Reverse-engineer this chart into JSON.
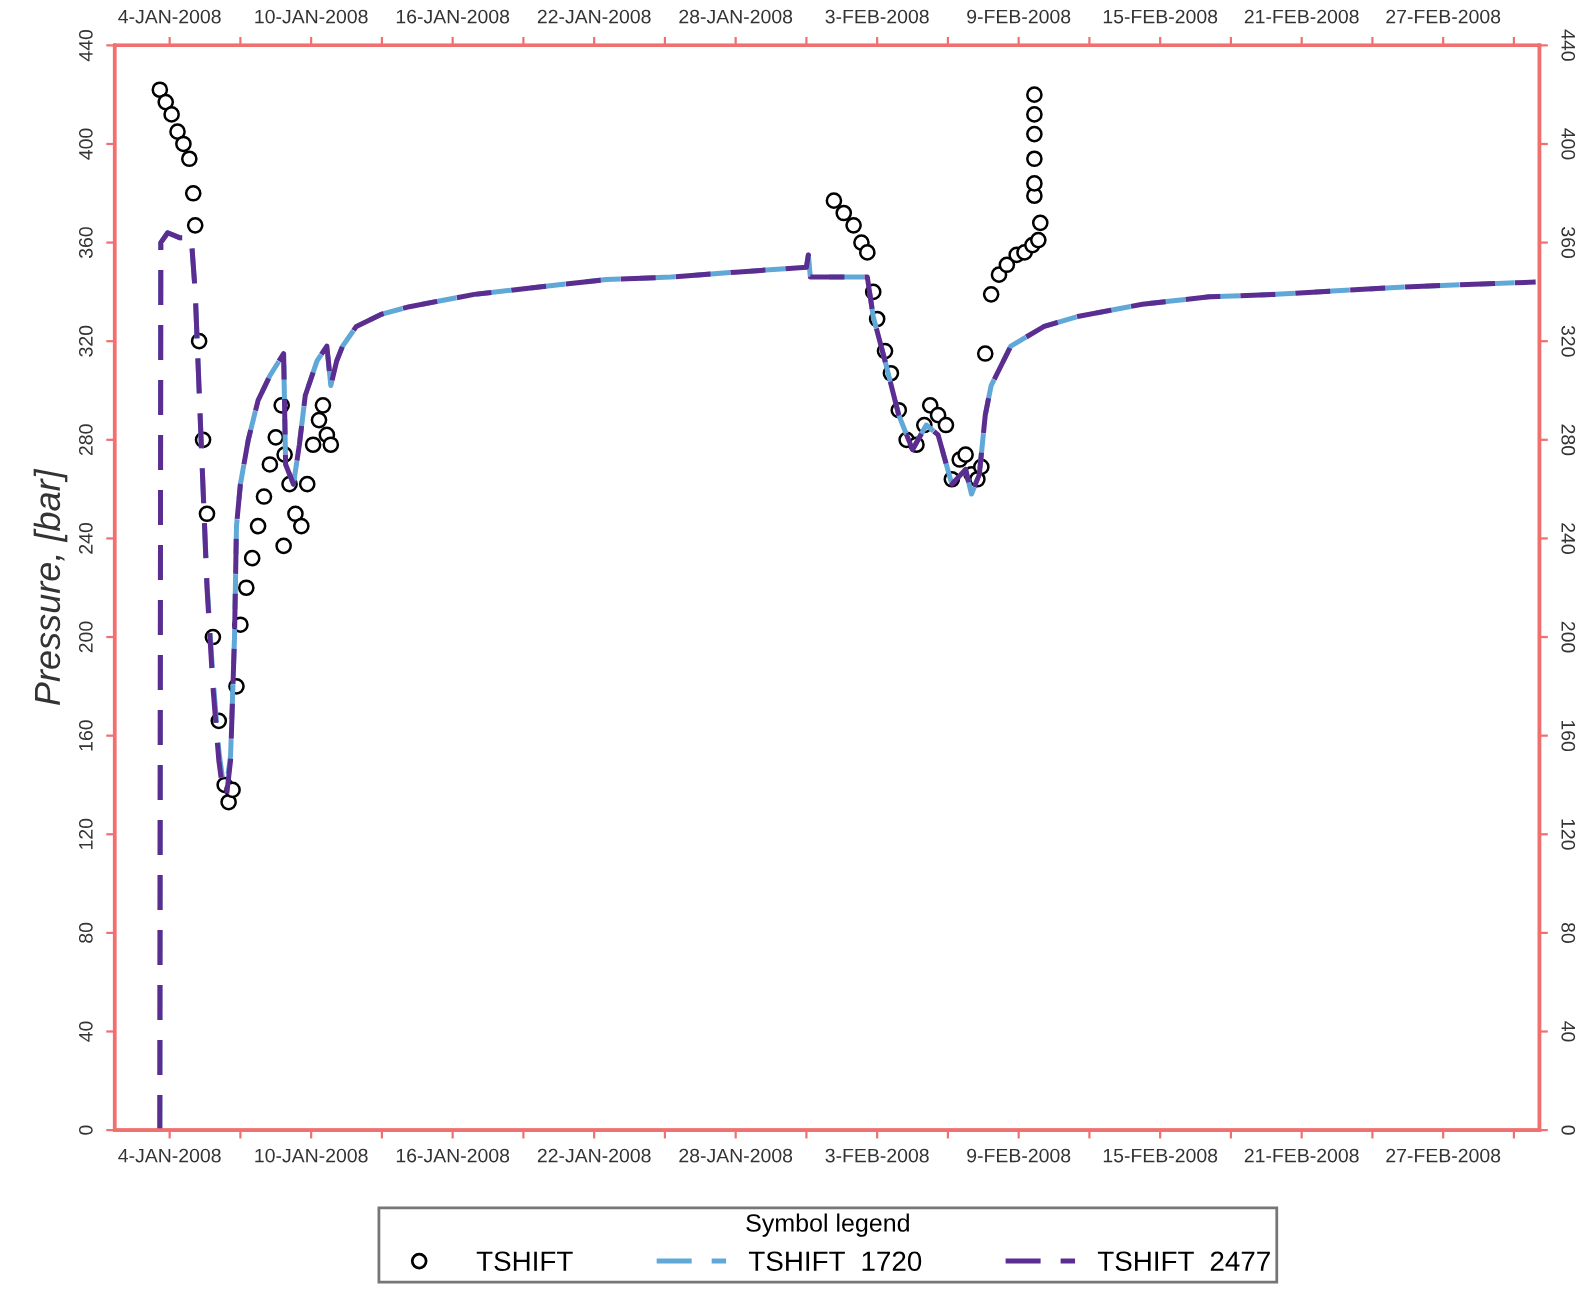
{
  "chart_data": {
    "type": "line",
    "ylabel": "Pressure, [bar]",
    "legend_title": "Symbol legend",
    "legend": "bottom",
    "grid": false,
    "xlim": [
      "2008-01-01T16:00",
      "2008-03-02T02:00"
    ],
    "xticks": [
      {
        "value": "2008-01-04",
        "label": "4-JAN-2008"
      },
      {
        "value": "2008-01-07",
        "label": null
      },
      {
        "value": "2008-01-10",
        "label": "10-JAN-2008"
      },
      {
        "value": "2008-01-13",
        "label": null
      },
      {
        "value": "2008-01-16",
        "label": "16-JAN-2008"
      },
      {
        "value": "2008-01-19",
        "label": null
      },
      {
        "value": "2008-01-22",
        "label": "22-JAN-2008"
      },
      {
        "value": "2008-01-25",
        "label": null
      },
      {
        "value": "2008-01-28",
        "label": "28-JAN-2008"
      },
      {
        "value": "2008-01-31",
        "label": null
      },
      {
        "value": "2008-02-03",
        "label": "3-FEB-2008"
      },
      {
        "value": "2008-02-06",
        "label": null
      },
      {
        "value": "2008-02-09",
        "label": "9-FEB-2008"
      },
      {
        "value": "2008-02-12",
        "label": null
      },
      {
        "value": "2008-02-15",
        "label": "15-FEB-2008"
      },
      {
        "value": "2008-02-18",
        "label": null
      },
      {
        "value": "2008-02-21",
        "label": "21-FEB-2008"
      },
      {
        "value": "2008-02-24",
        "label": null
      },
      {
        "value": "2008-02-27",
        "label": "27-FEB-2008"
      },
      {
        "value": "2008-03-01",
        "label": null
      }
    ],
    "x2lim": [
      "2008-01-01T16:00",
      "2008-03-02T02:00"
    ],
    "x2ticks": [
      {
        "value": "2008-01-04",
        "label": "4-JAN-2008"
      },
      {
        "value": "2008-01-07",
        "label": null
      },
      {
        "value": "2008-01-10",
        "label": "10-JAN-2008"
      },
      {
        "value": "2008-01-13",
        "label": null
      },
      {
        "value": "2008-01-16",
        "label": "16-JAN-2008"
      },
      {
        "value": "2008-01-19",
        "label": null
      },
      {
        "value": "2008-01-22",
        "label": "22-JAN-2008"
      },
      {
        "value": "2008-01-25",
        "label": null
      },
      {
        "value": "2008-01-28",
        "label": "28-JAN-2008"
      },
      {
        "value": "2008-01-31",
        "label": null
      },
      {
        "value": "2008-02-03",
        "label": "3-FEB-2008"
      },
      {
        "value": "2008-02-06",
        "label": null
      },
      {
        "value": "2008-02-09",
        "label": "9-FEB-2008"
      },
      {
        "value": "2008-02-12",
        "label": null
      },
      {
        "value": "2008-02-15",
        "label": "15-FEB-2008"
      },
      {
        "value": "2008-02-18",
        "label": null
      },
      {
        "value": "2008-02-21",
        "label": "21-FEB-2008"
      },
      {
        "value": "2008-02-24",
        "label": null
      },
      {
        "value": "2008-02-27",
        "label": "27-FEB-2008"
      },
      {
        "value": "2008-03-01",
        "label": null
      }
    ],
    "ylim": [
      0,
      440
    ],
    "yticks": [
      0,
      40,
      80,
      120,
      160,
      200,
      240,
      280,
      320,
      360,
      400,
      440
    ],
    "y2lim": [
      0,
      440
    ],
    "y2ticks": [
      0,
      40,
      80,
      120,
      160,
      200,
      240,
      280,
      320,
      360,
      400,
      440
    ],
    "series": [
      {
        "name": "TSHIFT",
        "type": "scatter",
        "marker": "circle",
        "color": "#000000",
        "x": [
          "2008-01-03T14:00",
          "2008-01-03T20:00",
          "2008-01-04T02:00",
          "2008-01-04T08:00",
          "2008-01-04T14:00",
          "2008-01-04T20:00",
          "2008-01-05T00:00",
          "2008-01-05T02:00",
          "2008-01-05T06:00",
          "2008-01-05T10:00",
          "2008-01-05T14:00",
          "2008-01-05T20:00",
          "2008-01-06T02:00",
          "2008-01-06T08:00",
          "2008-01-06T12:00",
          "2008-01-06T16:00",
          "2008-01-06T20:00",
          "2008-01-07T00:00",
          "2008-01-07T06:00",
          "2008-01-07T12:00",
          "2008-01-07T18:00",
          "2008-01-08T00:00",
          "2008-01-08T06:00",
          "2008-01-08T12:00",
          "2008-01-08T18:00",
          "2008-01-08T20:00",
          "2008-01-08T21:00",
          "2008-01-09T02:00",
          "2008-01-09T08:00",
          "2008-01-09T14:00",
          "2008-01-09T20:00",
          "2008-01-10T02:00",
          "2008-01-10T08:00",
          "2008-01-10T12:00",
          "2008-01-10T16:00",
          "2008-01-10T20:00",
          "2008-02-01T04:00",
          "2008-02-01T14:00",
          "2008-02-02T00:00",
          "2008-02-02T08:00",
          "2008-02-02T14:00",
          "2008-02-02T20:00",
          "2008-02-03T00:00",
          "2008-02-03T08:00",
          "2008-02-03T14:00",
          "2008-02-03T22:00",
          "2008-02-04T06:00",
          "2008-02-04T16:00",
          "2008-02-05T00:00",
          "2008-02-05T06:00",
          "2008-02-05T14:00",
          "2008-02-05T22:00",
          "2008-02-06T04:00",
          "2008-02-06T12:00",
          "2008-02-06T18:00",
          "2008-02-07T00:00",
          "2008-02-07T06:00",
          "2008-02-07T10:00",
          "2008-02-07T14:00",
          "2008-02-07T20:00",
          "2008-02-08T04:00",
          "2008-02-08T12:00",
          "2008-02-08T22:00",
          "2008-02-09T06:00",
          "2008-02-09T14:00",
          "2008-02-09T16:00",
          "2008-02-09T16:00",
          "2008-02-09T16:00",
          "2008-02-09T16:00",
          "2008-02-09T16:00",
          "2008-02-09T16:00",
          "2008-02-09T20:00",
          "2008-02-09T22:00"
        ],
        "values": [
          422,
          417,
          412,
          405,
          400,
          394,
          380,
          367,
          320,
          280,
          250,
          200,
          166,
          140,
          133,
          138,
          180,
          205,
          220,
          232,
          245,
          257,
          270,
          281,
          294,
          237,
          274,
          262,
          250,
          245,
          262,
          278,
          288,
          294,
          282,
          278,
          377,
          372,
          367,
          360,
          356,
          340,
          329,
          316,
          307,
          292,
          280,
          278,
          286,
          294,
          290,
          286,
          264,
          272,
          274,
          266,
          264,
          269,
          315,
          339,
          347,
          351,
          355,
          356,
          359,
          379,
          384,
          394,
          404,
          412,
          420,
          361,
          368
        ]
      },
      {
        "name": "TSHIFT  1720",
        "line_style": "dashed",
        "color": "#5fa8d8",
        "x": [
          "2008-01-03T14:00",
          "2008-01-03T15:00",
          "2008-01-03T22:00",
          "2008-01-04T10:00",
          "2008-01-04T22:00",
          "2008-01-05T02:00",
          "2008-01-05T08:00",
          "2008-01-05T14:00",
          "2008-01-05T20:00",
          "2008-01-06T02:00",
          "2008-01-06T06:00",
          "2008-01-06T10:00",
          "2008-01-06T14:00",
          "2008-01-06T18:00",
          "2008-01-06T20:00",
          "2008-01-07T00:00",
          "2008-01-07T08:00",
          "2008-01-07T18:00",
          "2008-01-08T06:00",
          "2008-01-08T20:00",
          "2008-01-08T22:00",
          "2008-01-09T06:00",
          "2008-01-09T12:00",
          "2008-01-09T18:00",
          "2008-01-10T06:00",
          "2008-01-10T16:00",
          "2008-01-10T20:00",
          "2008-01-11T02:00",
          "2008-01-11T08:00",
          "2008-01-11T22:00",
          "2008-01-13T00:00",
          "2008-01-14T04:00",
          "2008-01-16T22:00",
          "2008-01-19T16:00",
          "2008-01-22T12:00",
          "2008-01-25T06:00",
          "2008-01-28T00:00",
          "2008-01-31T00:00",
          "2008-01-31T02:00",
          "2008-01-31T04:00",
          "2008-02-02T14:00",
          "2008-02-02T20:00",
          "2008-02-03T08:00",
          "2008-02-03T22:00",
          "2008-02-04T12:00",
          "2008-02-05T02:00",
          "2008-02-05T14:00",
          "2008-02-06T04:00",
          "2008-02-06T18:00",
          "2008-02-07T00:00",
          "2008-02-07T08:00",
          "2008-02-07T14:00",
          "2008-02-07T20:00",
          "2008-02-08T16:00",
          "2008-02-10T02:00",
          "2008-02-11T12:00",
          "2008-02-14T06:00",
          "2008-02-17T02:00",
          "2008-02-19T22:00",
          "2008-02-25T08:00",
          "2008-03-01T22:00"
        ],
        "values": [
          0,
          360,
          364,
          362,
          362,
          340,
          280,
          222,
          184,
          154,
          142,
          140,
          152,
          200,
          245,
          262,
          280,
          296,
          306,
          315,
          270,
          262,
          278,
          298,
          312,
          318,
          302,
          312,
          318,
          326,
          331,
          334,
          339,
          342,
          345,
          346,
          348,
          350,
          355,
          346,
          346,
          330,
          312,
          290,
          276,
          286,
          282,
          262,
          268,
          258,
          266,
          290,
          302,
          318,
          326,
          330,
          335,
          338,
          339,
          342,
          344
        ]
      },
      {
        "name": "TSHIFT  2477",
        "line_style": "dashed",
        "color": "#5b2d90",
        "x": [
          "2008-01-03T14:00",
          "2008-01-03T15:00",
          "2008-01-03T22:00",
          "2008-01-04T10:00",
          "2008-01-04T22:00",
          "2008-01-05T02:00",
          "2008-01-05T08:00",
          "2008-01-05T14:00",
          "2008-01-05T20:00",
          "2008-01-06T02:00",
          "2008-01-06T06:00",
          "2008-01-06T10:00",
          "2008-01-06T14:00",
          "2008-01-06T18:00",
          "2008-01-06T20:00",
          "2008-01-07T00:00",
          "2008-01-07T08:00",
          "2008-01-07T18:00",
          "2008-01-08T06:00",
          "2008-01-08T20:00",
          "2008-01-08T22:00",
          "2008-01-09T06:00",
          "2008-01-09T12:00",
          "2008-01-09T18:00",
          "2008-01-10T06:00",
          "2008-01-10T16:00",
          "2008-01-10T20:00",
          "2008-01-11T02:00",
          "2008-01-11T08:00",
          "2008-01-11T22:00",
          "2008-01-13T00:00",
          "2008-01-14T04:00",
          "2008-01-16T22:00",
          "2008-01-19T16:00",
          "2008-01-22T12:00",
          "2008-01-25T06:00",
          "2008-01-28T00:00",
          "2008-01-31T00:00",
          "2008-01-31T02:00",
          "2008-01-31T04:00",
          "2008-02-02T14:00",
          "2008-02-02T20:00",
          "2008-02-03T08:00",
          "2008-02-03T22:00",
          "2008-02-04T12:00",
          "2008-02-05T02:00",
          "2008-02-05T14:00",
          "2008-02-06T04:00",
          "2008-02-06T18:00",
          "2008-02-07T00:00",
          "2008-02-07T08:00",
          "2008-02-07T14:00",
          "2008-02-07T20:00",
          "2008-02-08T16:00",
          "2008-02-10T02:00",
          "2008-02-11T12:00",
          "2008-02-14T06:00",
          "2008-02-17T02:00",
          "2008-02-19T22:00",
          "2008-02-25T08:00",
          "2008-03-01T22:00"
        ],
        "values": [
          0,
          360,
          364,
          362,
          362,
          340,
          280,
          220,
          180,
          150,
          138,
          136,
          150,
          200,
          245,
          262,
          280,
          296,
          306,
          315,
          270,
          262,
          278,
          298,
          312,
          318,
          302,
          312,
          318,
          326,
          331,
          334,
          339,
          342,
          345,
          346,
          348,
          350,
          355,
          346,
          346,
          330,
          312,
          290,
          276,
          286,
          282,
          262,
          268,
          258,
          266,
          290,
          302,
          318,
          326,
          330,
          335,
          338,
          339,
          342,
          344
        ]
      }
    ]
  }
}
